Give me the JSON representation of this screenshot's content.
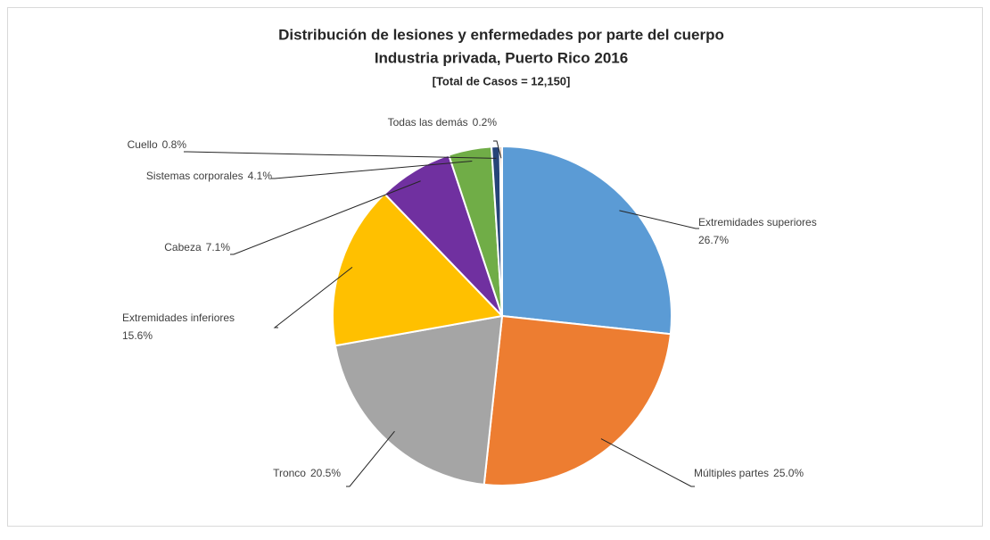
{
  "chart_data": {
    "type": "pie",
    "title": "Distribución de lesiones y enfermedades por parte del cuerpo",
    "subtitle": "Industria privada, Puerto Rico 2016",
    "annotation": "[Total de Casos = 12,150]",
    "categories": [
      "Extremidades superiores",
      "Múltiples partes",
      "Tronco",
      "Extremidades inferiores",
      "Cabeza",
      "Sistemas corporales",
      "Cuello",
      "Todas las demás"
    ],
    "values": [
      26.7,
      25.0,
      20.5,
      15.6,
      7.1,
      4.1,
      0.8,
      0.2
    ],
    "value_labels": [
      "26.7%",
      "25.0%",
      "20.5%",
      "15.6%",
      "7.1%",
      "4.1%",
      "0.8%",
      "0.2%"
    ],
    "colors": [
      "#5b9bd5",
      "#ed7d31",
      "#a5a5a5",
      "#ffc000",
      "#7030a0",
      "#70ad47",
      "#264478",
      "#9e480e"
    ]
  }
}
